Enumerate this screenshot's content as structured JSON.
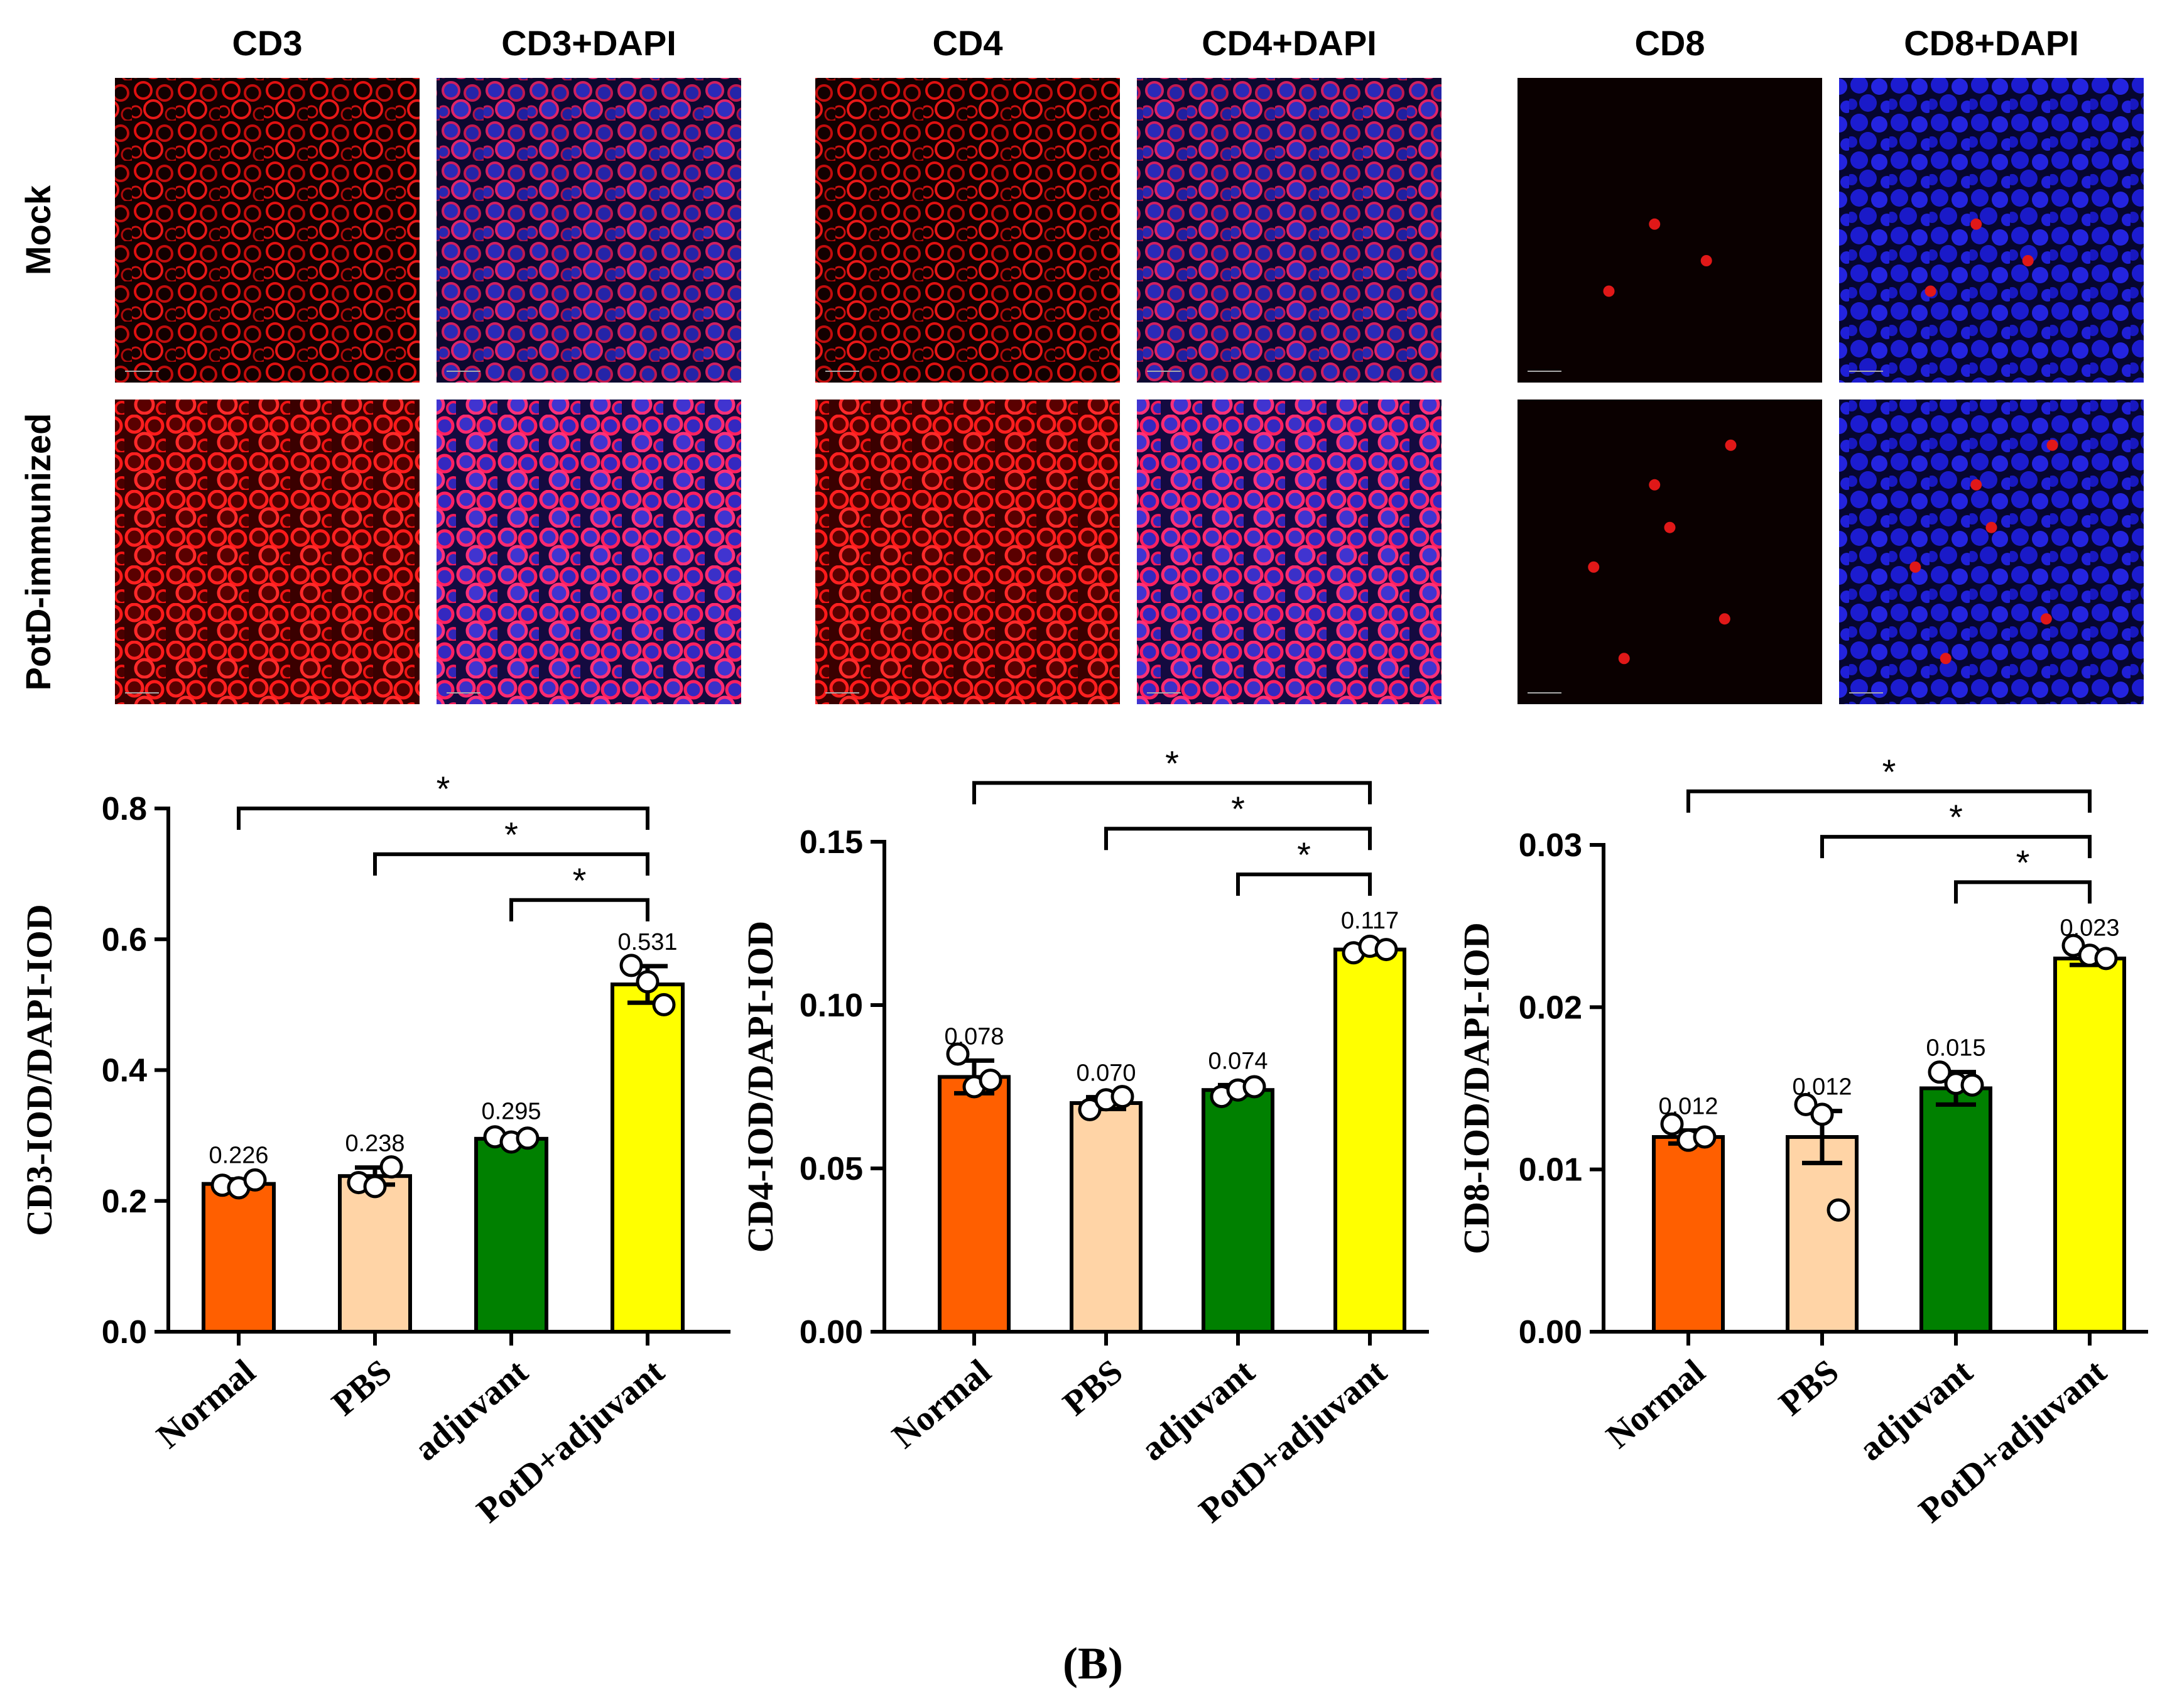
{
  "micrographs": {
    "columns": [
      "CD3",
      "CD3+DAPI",
      "CD4",
      "CD4+DAPI",
      "CD8",
      "CD8+DAPI"
    ],
    "rows": [
      "Mock",
      "PotD-immunized"
    ]
  },
  "panel_label": "(B)",
  "colors": {
    "normal": "#ff5f00",
    "pbs": "#ffd4a6",
    "adjuvant": "#008000",
    "potd_adjuvant": "#ffff00",
    "stain_red": "#ff1a1a",
    "stain_blue": "#2020e0",
    "image_bg": "#0a0000"
  },
  "chart_data": [
    {
      "type": "bar",
      "ylabel": "CD3-IOD/DAPI-IOD",
      "categories": [
        "Normal",
        "PBS",
        "adjuvant",
        "PotD+adjuvant"
      ],
      "values": [
        0.226,
        0.238,
        0.295,
        0.531
      ],
      "value_labels": [
        "0.226",
        "0.238",
        "0.295",
        "0.531"
      ],
      "errors": [
        0.007,
        0.013,
        0.005,
        0.028
      ],
      "points": [
        [
          0.224,
          0.22,
          0.232
        ],
        [
          0.228,
          0.222,
          0.252
        ],
        [
          0.298,
          0.29,
          0.296
        ],
        [
          0.56,
          0.535,
          0.5
        ]
      ],
      "ylim": [
        0,
        0.8
      ],
      "yticks": [
        0.0,
        0.2,
        0.4,
        0.6,
        0.8
      ],
      "ytick_labels": [
        "0.0",
        "0.2",
        "0.4",
        "0.6",
        "0.8"
      ],
      "significance": [
        {
          "from": 0,
          "to": 3,
          "y": 0.8,
          "label": "*"
        },
        {
          "from": 1,
          "to": 3,
          "y": 0.73,
          "label": "*"
        },
        {
          "from": 2,
          "to": 3,
          "y": 0.66,
          "label": "*"
        }
      ]
    },
    {
      "type": "bar",
      "ylabel": "CD4-IOD/DAPI-IOD",
      "categories": [
        "Normal",
        "PBS",
        "adjuvant",
        "PotD+adjuvant"
      ],
      "values": [
        0.078,
        0.07,
        0.074,
        0.117
      ],
      "value_labels": [
        "0.078",
        "0.070",
        "0.074",
        "0.117"
      ],
      "errors": [
        0.005,
        0.0018,
        0.0015,
        0.0015
      ],
      "points": [
        [
          0.085,
          0.075,
          0.077
        ],
        [
          0.068,
          0.071,
          0.072
        ],
        [
          0.072,
          0.074,
          0.075
        ],
        [
          0.116,
          0.118,
          0.117
        ]
      ],
      "ylim": [
        0,
        0.15
      ],
      "yticks": [
        0.0,
        0.05,
        0.1,
        0.15
      ],
      "ytick_labels": [
        "0.00",
        "0.05",
        "0.10",
        "0.15"
      ],
      "significance": [
        {
          "from": 0,
          "to": 3,
          "y": 0.168,
          "label": "*"
        },
        {
          "from": 1,
          "to": 3,
          "y": 0.154,
          "label": "*"
        },
        {
          "from": 2,
          "to": 3,
          "y": 0.14,
          "label": "*"
        }
      ]
    },
    {
      "type": "bar",
      "ylabel": "CD8-IOD/DAPI-IOD",
      "categories": [
        "Normal",
        "PBS",
        "adjuvant",
        "PotD+adjuvant"
      ],
      "values": [
        0.012,
        0.012,
        0.015,
        0.023
      ],
      "value_labels": [
        "0.012",
        "0.012",
        "0.015",
        "0.023"
      ],
      "errors": [
        0.0004,
        0.0016,
        0.001,
        0.0004
      ],
      "points": [
        [
          0.0128,
          0.0118,
          0.012
        ],
        [
          0.014,
          0.0134,
          0.0075
        ],
        [
          0.016,
          0.0153,
          0.0152
        ],
        [
          0.0238,
          0.0232,
          0.023
        ]
      ],
      "ylim": [
        0,
        0.03
      ],
      "yticks": [
        0.0,
        0.01,
        0.02,
        0.03
      ],
      "ytick_labels": [
        "0.00",
        "0.01",
        "0.02",
        "0.03"
      ],
      "significance": [
        {
          "from": 0,
          "to": 3,
          "y": 0.0333,
          "label": "*"
        },
        {
          "from": 1,
          "to": 3,
          "y": 0.0305,
          "label": "*"
        },
        {
          "from": 2,
          "to": 3,
          "y": 0.0277,
          "label": "*"
        }
      ]
    }
  ]
}
